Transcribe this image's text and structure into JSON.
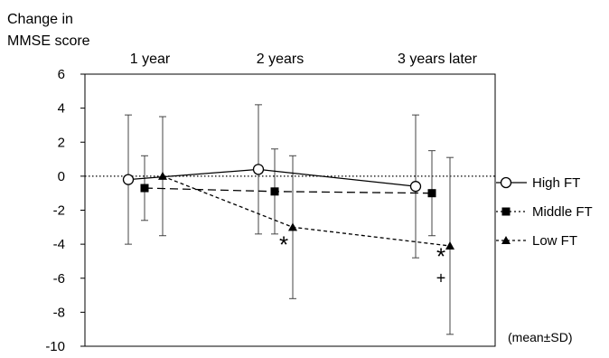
{
  "chart_data": {
    "type": "line",
    "ylabel_lines": [
      "Change in",
      "MMSE score"
    ],
    "categories": [
      "1 year",
      "2 years",
      "3 years later"
    ],
    "ylim": [
      -10,
      6
    ],
    "yticks": [
      6,
      4,
      2,
      0,
      -2,
      -4,
      -6,
      -8,
      -10
    ],
    "reference_line": 0,
    "series": [
      {
        "name": "High FT",
        "marker": "circle-open",
        "line": "solid",
        "values": [
          -0.2,
          0.4,
          -0.6
        ],
        "sd": [
          3.8,
          3.8,
          4.2
        ]
      },
      {
        "name": "Middle FT",
        "marker": "square",
        "line": "dashed",
        "values": [
          -0.7,
          -0.9,
          -1.0
        ],
        "sd": [
          1.9,
          2.5,
          2.5
        ]
      },
      {
        "name": "Low FT",
        "marker": "triangle",
        "line": "dotted-dash",
        "values": [
          0.0,
          -3.0,
          -4.1
        ],
        "sd": [
          3.5,
          4.2,
          5.2
        ]
      }
    ],
    "annotations": [
      {
        "text": "*",
        "category": 1,
        "y": -4.5
      },
      {
        "text": "*",
        "category": 2,
        "y": -5.2
      },
      {
        "text": "+",
        "category": 2,
        "y": -6.3
      }
    ],
    "note": "(mean±SD)"
  }
}
